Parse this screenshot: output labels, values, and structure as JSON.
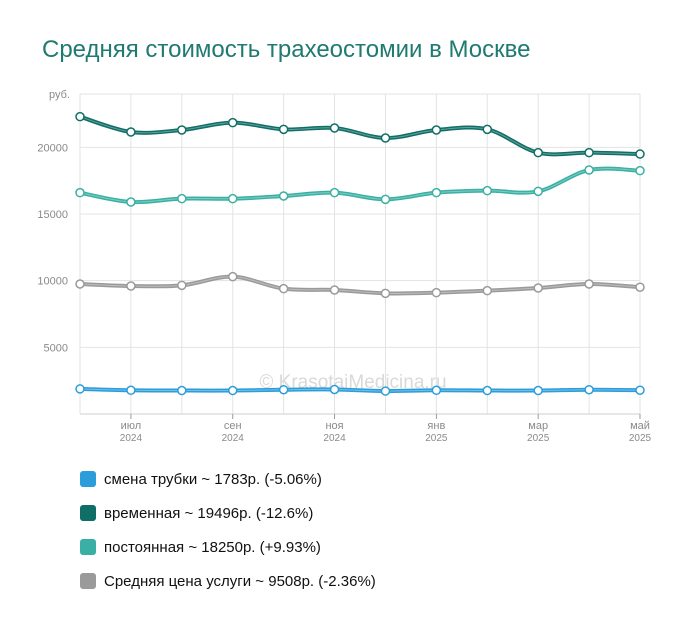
{
  "title": "Средняя стоимость трахеостомии в Москве",
  "watermark": "© KrasotaiMedicina.ru",
  "chart_data": {
    "type": "line",
    "ylabel": "руб.",
    "ylim": [
      0,
      24000
    ],
    "yticks": [
      5000,
      10000,
      15000,
      20000
    ],
    "grid": true,
    "x": [
      "2024-06",
      "2024-07",
      "2024-08",
      "2024-09",
      "2024-10",
      "2024-11",
      "2024-12",
      "2025-01",
      "2025-02",
      "2025-03",
      "2025-04",
      "2025-05"
    ],
    "xtick_labels": [
      {
        "index": 1,
        "month": "июл",
        "year": "2024"
      },
      {
        "index": 3,
        "month": "сен",
        "year": "2024"
      },
      {
        "index": 5,
        "month": "ноя",
        "year": "2024"
      },
      {
        "index": 7,
        "month": "янв",
        "year": "2025"
      },
      {
        "index": 9,
        "month": "мар",
        "year": "2025"
      },
      {
        "index": 11,
        "month": "май",
        "year": "2025"
      }
    ],
    "series": [
      {
        "name": "смена трубки",
        "color": "#2b9ddb",
        "values": [
          1880,
          1780,
          1760,
          1760,
          1820,
          1840,
          1720,
          1780,
          1760,
          1760,
          1820,
          1783
        ]
      },
      {
        "name": "временная",
        "color": "#0f6f66",
        "values": [
          22300,
          21150,
          21300,
          21850,
          21350,
          21450,
          20700,
          21300,
          21350,
          19600,
          19600,
          19496
        ]
      },
      {
        "name": "постоянная",
        "color": "#3ab0a4",
        "values": [
          16600,
          15900,
          16150,
          16150,
          16350,
          16600,
          16100,
          16600,
          16750,
          16700,
          18300,
          18250
        ]
      },
      {
        "name": "Средняя цена услуги",
        "color": "#9a9a9a",
        "values": [
          9750,
          9600,
          9650,
          10300,
          9400,
          9300,
          9050,
          9100,
          9250,
          9450,
          9750,
          9508
        ]
      }
    ]
  },
  "legend": [
    {
      "label": "смена трубки ~ 1783р. (-5.06%)",
      "color": "#2b9ddb"
    },
    {
      "label": "временная ~ 19496р. (-12.6%)",
      "color": "#0f6f66"
    },
    {
      "label": "постоянная ~ 18250р. (+9.93%)",
      "color": "#3ab0a4"
    },
    {
      "label": "Средняя цена услуги ~ 9508р. (-2.36%)",
      "color": "#9a9a9a"
    }
  ]
}
